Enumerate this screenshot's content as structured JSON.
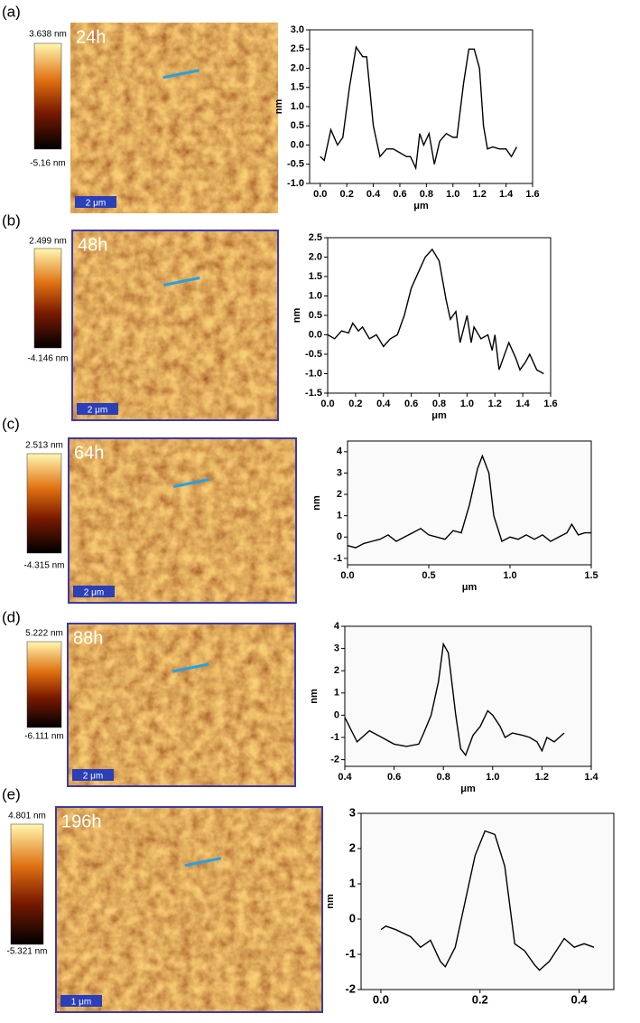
{
  "panels": [
    {
      "label": "(a)",
      "image": {
        "time": "24h",
        "scale_bar": "2 μm",
        "colorbar_max": "3.638 nm",
        "colorbar_min": "-5.16 nm"
      }
    },
    {
      "label": "(b)",
      "image": {
        "time": "48h",
        "scale_bar": "2 μm",
        "colorbar_max": "2.499 nm",
        "colorbar_min": "-4.146 nm"
      }
    },
    {
      "label": "(c)",
      "image": {
        "time": "64h",
        "scale_bar": "2 μm",
        "colorbar_max": "2.513 nm",
        "colorbar_min": "-4.315 nm"
      }
    },
    {
      "label": "(d)",
      "image": {
        "time": "88h",
        "scale_bar": "2 μm",
        "colorbar_max": "5.222 nm",
        "colorbar_min": "-6.111 nm"
      }
    },
    {
      "label": "(e)",
      "image": {
        "time": "196h",
        "scale_bar": "1 μm",
        "colorbar_max": "4.801 nm",
        "colorbar_min": "-5.321 nm"
      }
    }
  ],
  "chart_data": [
    {
      "type": "line",
      "xlabel": "μm",
      "ylabel": "nm",
      "color": "#000000",
      "x": [
        0.0,
        0.03,
        0.08,
        0.13,
        0.17,
        0.22,
        0.27,
        0.32,
        0.35,
        0.4,
        0.45,
        0.5,
        0.55,
        0.6,
        0.65,
        0.68,
        0.72,
        0.75,
        0.78,
        0.82,
        0.86,
        0.9,
        0.95,
        1.0,
        1.03,
        1.08,
        1.12,
        1.16,
        1.2,
        1.23,
        1.26,
        1.3,
        1.35,
        1.4,
        1.44,
        1.48
      ],
      "values": [
        -0.3,
        -0.4,
        0.4,
        0.0,
        0.2,
        1.5,
        2.55,
        2.3,
        2.3,
        0.5,
        -0.3,
        -0.1,
        -0.1,
        -0.2,
        -0.3,
        -0.3,
        -0.6,
        0.3,
        0.0,
        0.3,
        -0.5,
        0.1,
        0.3,
        0.2,
        0.2,
        1.6,
        2.5,
        2.5,
        2.0,
        0.5,
        -0.1,
        -0.05,
        -0.1,
        -0.1,
        -0.3,
        -0.05
      ],
      "xlim": [
        -0.08,
        1.6
      ],
      "ylim": [
        -1.0,
        3.0
      ],
      "xticks": [
        {
          "value": 0,
          "label": "0.0"
        },
        0.2,
        0.4,
        0.6,
        0.8,
        {
          "value": 1,
          "label": "1.0"
        },
        1.2,
        1.4,
        1.6
      ],
      "yticks": [
        {
          "value": -1,
          "label": "-1.0"
        },
        -0.5,
        {
          "value": 0,
          "label": "0.0"
        },
        0.5,
        {
          "value": 1,
          "label": "1.0"
        },
        1.5,
        {
          "value": 2,
          "label": "2.0"
        },
        2.5,
        {
          "value": 3,
          "label": "3.0"
        }
      ]
    },
    {
      "type": "line",
      "xlabel": "μm",
      "ylabel": "nm",
      "color": "#000000",
      "x": [
        0,
        0.05,
        0.1,
        0.15,
        0.18,
        0.22,
        0.25,
        0.3,
        0.35,
        0.4,
        0.45,
        0.5,
        0.55,
        0.6,
        0.65,
        0.7,
        0.75,
        0.8,
        0.85,
        0.88,
        0.92,
        0.95,
        1.0,
        1.03,
        1.05,
        1.1,
        1.15,
        1.18,
        1.2,
        1.23,
        1.26,
        1.3,
        1.35,
        1.38,
        1.42,
        1.45,
        1.5,
        1.55
      ],
      "values": [
        0.0,
        -0.1,
        0.1,
        0.05,
        0.3,
        0.1,
        0.2,
        -0.1,
        0.0,
        -0.3,
        -0.1,
        0.0,
        0.5,
        1.2,
        1.6,
        2.0,
        2.2,
        1.9,
        0.9,
        0.4,
        0.6,
        -0.2,
        0.5,
        -0.2,
        0.2,
        -0.1,
        0.0,
        -0.4,
        0.0,
        -0.9,
        -0.6,
        -0.2,
        -0.6,
        -0.9,
        -0.7,
        -0.5,
        -0.9,
        -1.0
      ],
      "xlim": [
        0,
        1.6
      ],
      "ylim": [
        -1.5,
        2.5
      ],
      "xticks": [
        {
          "value": 0,
          "label": "0.0"
        },
        0.2,
        0.4,
        0.6,
        0.8,
        {
          "value": 1,
          "label": "1.0"
        },
        1.2,
        1.4,
        1.6
      ],
      "yticks": [
        -1.5,
        {
          "value": -1,
          "label": "-1.0"
        },
        -0.5,
        {
          "value": 0,
          "label": "0.0"
        },
        0.5,
        {
          "value": 1,
          "label": "1.0"
        },
        1.5,
        {
          "value": 2,
          "label": "2.0"
        },
        2.5
      ]
    },
    {
      "type": "line",
      "xlabel": "μm",
      "ylabel": "nm",
      "color": "#000000",
      "x": [
        0,
        0.05,
        0.1,
        0.15,
        0.2,
        0.25,
        0.3,
        0.35,
        0.4,
        0.45,
        0.5,
        0.55,
        0.6,
        0.65,
        0.7,
        0.75,
        0.8,
        0.83,
        0.87,
        0.9,
        0.95,
        1.0,
        1.05,
        1.1,
        1.15,
        1.2,
        1.25,
        1.3,
        1.35,
        1.38,
        1.42,
        1.46,
        1.5
      ],
      "values": [
        -0.4,
        -0.5,
        -0.3,
        -0.2,
        -0.1,
        0.1,
        -0.2,
        0.0,
        0.2,
        0.4,
        0.1,
        0.0,
        -0.1,
        0.3,
        0.2,
        1.5,
        3.2,
        3.8,
        3.0,
        1.0,
        -0.2,
        0.0,
        -0.1,
        0.1,
        -0.1,
        0.1,
        -0.2,
        0.0,
        0.2,
        0.6,
        0.1,
        0.2,
        0.2
      ],
      "xlim": [
        0,
        1.5
      ],
      "ylim": [
        -1.3,
        4.5
      ],
      "xticks": [
        {
          "value": 0,
          "label": "0.0"
        },
        0.5,
        {
          "value": 1,
          "label": "1.0"
        },
        1.5
      ],
      "yticks": [
        -1,
        0,
        1,
        2,
        3,
        4
      ]
    },
    {
      "type": "line",
      "xlabel": "μm",
      "ylabel": "nm",
      "color": "#000000",
      "x": [
        0.4,
        0.45,
        0.5,
        0.55,
        0.6,
        0.65,
        0.7,
        0.72,
        0.75,
        0.78,
        0.8,
        0.82,
        0.85,
        0.87,
        0.89,
        0.92,
        0.95,
        0.98,
        1.0,
        1.03,
        1.05,
        1.08,
        1.12,
        1.15,
        1.18,
        1.2,
        1.22,
        1.25,
        1.29
      ],
      "values": [
        -0.1,
        -1.2,
        -0.7,
        -1.0,
        -1.3,
        -1.4,
        -1.3,
        -0.8,
        0.0,
        1.5,
        3.2,
        2.8,
        0.0,
        -1.5,
        -1.8,
        -0.9,
        -0.5,
        0.2,
        0.0,
        -0.5,
        -1.0,
        -0.8,
        -0.9,
        -1.0,
        -1.2,
        -1.6,
        -1.0,
        -1.2,
        -0.8
      ],
      "xlim": [
        0.4,
        1.4
      ],
      "ylim": [
        -2.3,
        4.0
      ],
      "xticks": [
        0.4,
        0.6,
        0.8,
        {
          "value": 1,
          "label": "1.0"
        },
        1.2,
        1.4
      ],
      "yticks": [
        -2,
        -1,
        0,
        1,
        2,
        3,
        4
      ]
    },
    {
      "type": "line",
      "ylabel": "nm",
      "color": "#000000",
      "x": [
        0,
        0.01,
        0.03,
        0.06,
        0.08,
        0.1,
        0.12,
        0.13,
        0.15,
        0.17,
        0.19,
        0.21,
        0.23,
        0.25,
        0.27,
        0.29,
        0.31,
        0.32,
        0.34,
        0.37,
        0.39,
        0.41,
        0.43
      ],
      "values": [
        -0.3,
        -0.2,
        -0.3,
        -0.5,
        -0.8,
        -0.6,
        -1.2,
        -1.35,
        -0.8,
        0.5,
        1.8,
        2.5,
        2.4,
        1.5,
        -0.7,
        -0.9,
        -1.3,
        -1.45,
        -1.2,
        -0.55,
        -0.8,
        -0.7,
        -0.8
      ],
      "xlim": [
        -0.04,
        0.47
      ],
      "ylim": [
        -2,
        3
      ],
      "xticks": [
        {
          "value": 0,
          "label": "0.0"
        },
        0.2,
        0.4
      ],
      "yticks": [
        -2,
        -1,
        0,
        1,
        2,
        3
      ]
    }
  ]
}
